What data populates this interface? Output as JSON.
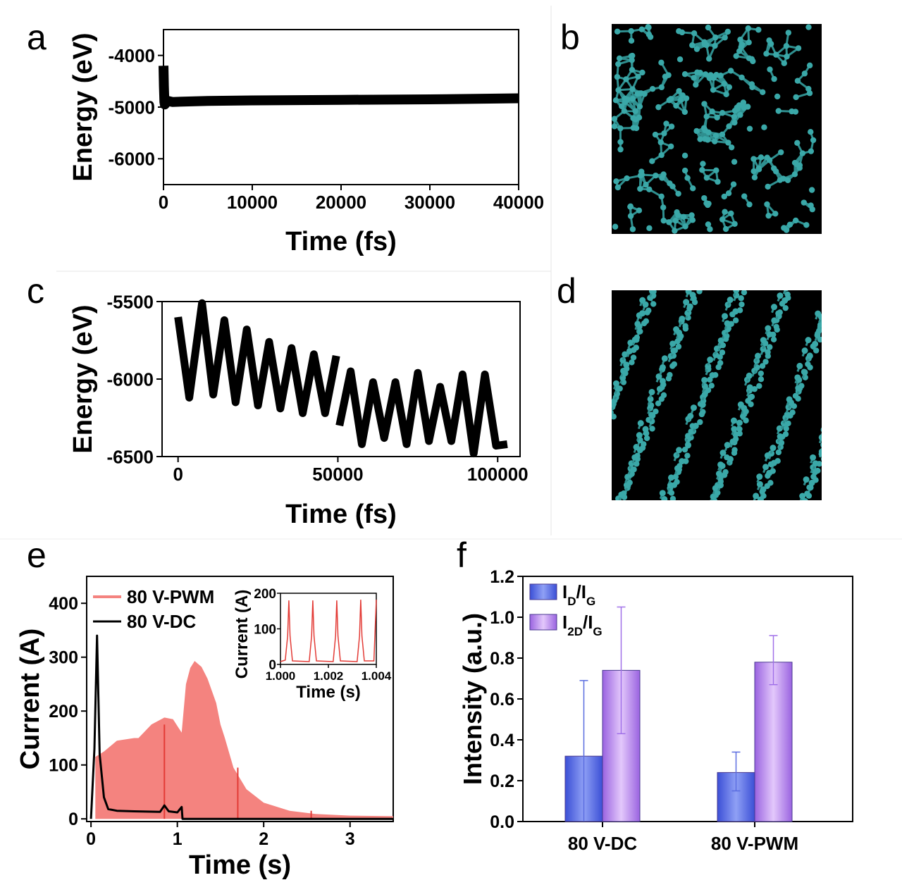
{
  "panel_letters": [
    "a",
    "b",
    "c",
    "d",
    "e",
    "f"
  ],
  "colors": {
    "line": "#000000",
    "pwm_fill": "#f4837f",
    "pwm_line": "#e33b36",
    "dc_line": "#000000",
    "bar_dg": "#5a6de0",
    "bar_2dg": "#b68ae8",
    "atoms": "#3aa8a8",
    "atom_bg": "#000000"
  },
  "images": {
    "b": {
      "type": "atomistic-render",
      "style": "amorphous carbon network"
    },
    "d": {
      "type": "atomistic-render",
      "style": "aligned diagonal carbon chains"
    }
  },
  "chart_data": [
    {
      "id": "a",
      "type": "line",
      "title": "",
      "xlabel": "Time (fs)",
      "ylabel": "Energy (eV)",
      "xlim": [
        0,
        40000
      ],
      "ylim": [
        -6500,
        -3500
      ],
      "xticks": [
        0,
        10000,
        20000,
        30000,
        40000
      ],
      "yticks": [
        -4000,
        -5000,
        -6000
      ],
      "series": [
        {
          "x": [
            0,
            50,
            100,
            150,
            200,
            300,
            500,
            1000,
            5000,
            10000,
            20000,
            30000,
            40000
          ],
          "y": [
            -4200,
            -4600,
            -4900,
            -4950,
            -4880,
            -4920,
            -4880,
            -4900,
            -4880,
            -4870,
            -4860,
            -4850,
            -4830
          ]
        }
      ]
    },
    {
      "id": "c",
      "type": "line",
      "title": "",
      "xlabel": "Time (fs)",
      "ylabel": "Energy (eV)",
      "xlim": [
        -5000,
        107000
      ],
      "ylim": [
        -6500,
        -5500
      ],
      "xticks": [
        0,
        50000,
        100000
      ],
      "yticks": [
        -5500,
        -6000,
        -6500
      ],
      "series": [
        {
          "x": [
            0,
            3500,
            7500,
            11000,
            14500,
            18000,
            21500,
            25000,
            28500,
            32000,
            35500,
            39000,
            42500,
            46000,
            49500,
            50500,
            54000,
            57500,
            61000,
            64500,
            68000,
            71500,
            75000,
            78500,
            82000,
            85500,
            89000,
            92500,
            96000,
            99500,
            103000
          ],
          "y": [
            -5600,
            -6120,
            -5510,
            -6100,
            -5620,
            -6150,
            -5680,
            -6170,
            -5760,
            -6190,
            -5800,
            -6220,
            -5840,
            -6220,
            -5850,
            -6300,
            -5950,
            -6420,
            -6020,
            -6380,
            -6020,
            -6420,
            -5960,
            -6400,
            -6050,
            -6400,
            -5970,
            -6480,
            -5970,
            -6430,
            -6420
          ]
        }
      ]
    },
    {
      "id": "e",
      "type": "area",
      "title": "",
      "xlabel": "Time (s)",
      "ylabel": "Current (A)",
      "xlim": [
        -0.05,
        3.5
      ],
      "ylim": [
        -5,
        450
      ],
      "xticks": [
        0,
        1,
        2,
        3
      ],
      "yticks": [
        0,
        100,
        200,
        300,
        400
      ],
      "legend_position": "top-left",
      "series": [
        {
          "name": "80 V-PWM",
          "style": "filled-area",
          "x": [
            0.05,
            0.15,
            0.3,
            0.5,
            0.55,
            0.7,
            0.85,
            0.95,
            1.05,
            1.1,
            1.15,
            1.2,
            1.28,
            1.35,
            1.45,
            1.5,
            1.55,
            1.65,
            1.8,
            2.0,
            2.3,
            2.6,
            3.0,
            3.5
          ],
          "y": [
            115,
            125,
            145,
            150,
            150,
            175,
            188,
            185,
            160,
            250,
            280,
            293,
            282,
            260,
            215,
            175,
            150,
            95,
            55,
            30,
            15,
            9,
            6,
            5
          ]
        },
        {
          "name": "80 V-DC",
          "style": "line",
          "x": [
            0,
            0.04,
            0.07,
            0.1,
            0.15,
            0.2,
            0.3,
            0.5,
            0.8,
            0.85,
            0.9,
            1.0,
            1.05,
            1.06,
            1.1,
            3.5
          ],
          "y": [
            0,
            130,
            340,
            120,
            40,
            18,
            15,
            14,
            13,
            25,
            14,
            12,
            22,
            0,
            0,
            0
          ]
        }
      ],
      "inset": {
        "type": "line",
        "xlabel": "Time (s)",
        "ylabel": "Current (A)",
        "xlim": [
          1.0,
          1.004
        ],
        "ylim": [
          0,
          200
        ],
        "xticks": [
          "1.000",
          "1.002",
          "1.004"
        ],
        "yticks": [
          0,
          100,
          200
        ],
        "series": [
          {
            "name": "80 V-PWM",
            "x": [
              1.0,
              1.0002,
              1.0003,
              1.00035,
              1.0004,
              1.0005,
              1.0012,
              1.0013,
              1.00135,
              1.0014,
              1.0015,
              1.0022,
              1.0023,
              1.00235,
              1.0024,
              1.0025,
              1.0032,
              1.0033,
              1.00335,
              1.0034,
              1.0035,
              1.0039,
              1.004
            ],
            "y": [
              8,
              12,
              80,
              180,
              80,
              10,
              8,
              80,
              180,
              80,
              10,
              8,
              80,
              180,
              80,
              10,
              8,
              80,
              182,
              80,
              10,
              10,
              182
            ]
          }
        ]
      }
    },
    {
      "id": "f",
      "type": "bar",
      "title": "",
      "xlabel": "",
      "ylabel": "Intensity (a.u.)",
      "ylim": [
        0,
        1.2
      ],
      "yticks": [
        "0.0",
        "0.2",
        "0.4",
        "0.6",
        "0.8",
        "1.0",
        "1.2"
      ],
      "categories": [
        "80 V-DC",
        "80 V-PWM"
      ],
      "legend_position": "top-left",
      "series": [
        {
          "name": "I_D/I_G",
          "values": [
            0.32,
            0.24
          ],
          "errors_low": [
            0,
            0.15
          ],
          "errors_high": [
            0.69,
            0.34
          ]
        },
        {
          "name": "I_2D/I_G",
          "values": [
            0.74,
            0.78
          ],
          "errors_low": [
            0.43,
            0.67
          ],
          "errors_high": [
            1.05,
            0.91
          ]
        }
      ]
    }
  ]
}
